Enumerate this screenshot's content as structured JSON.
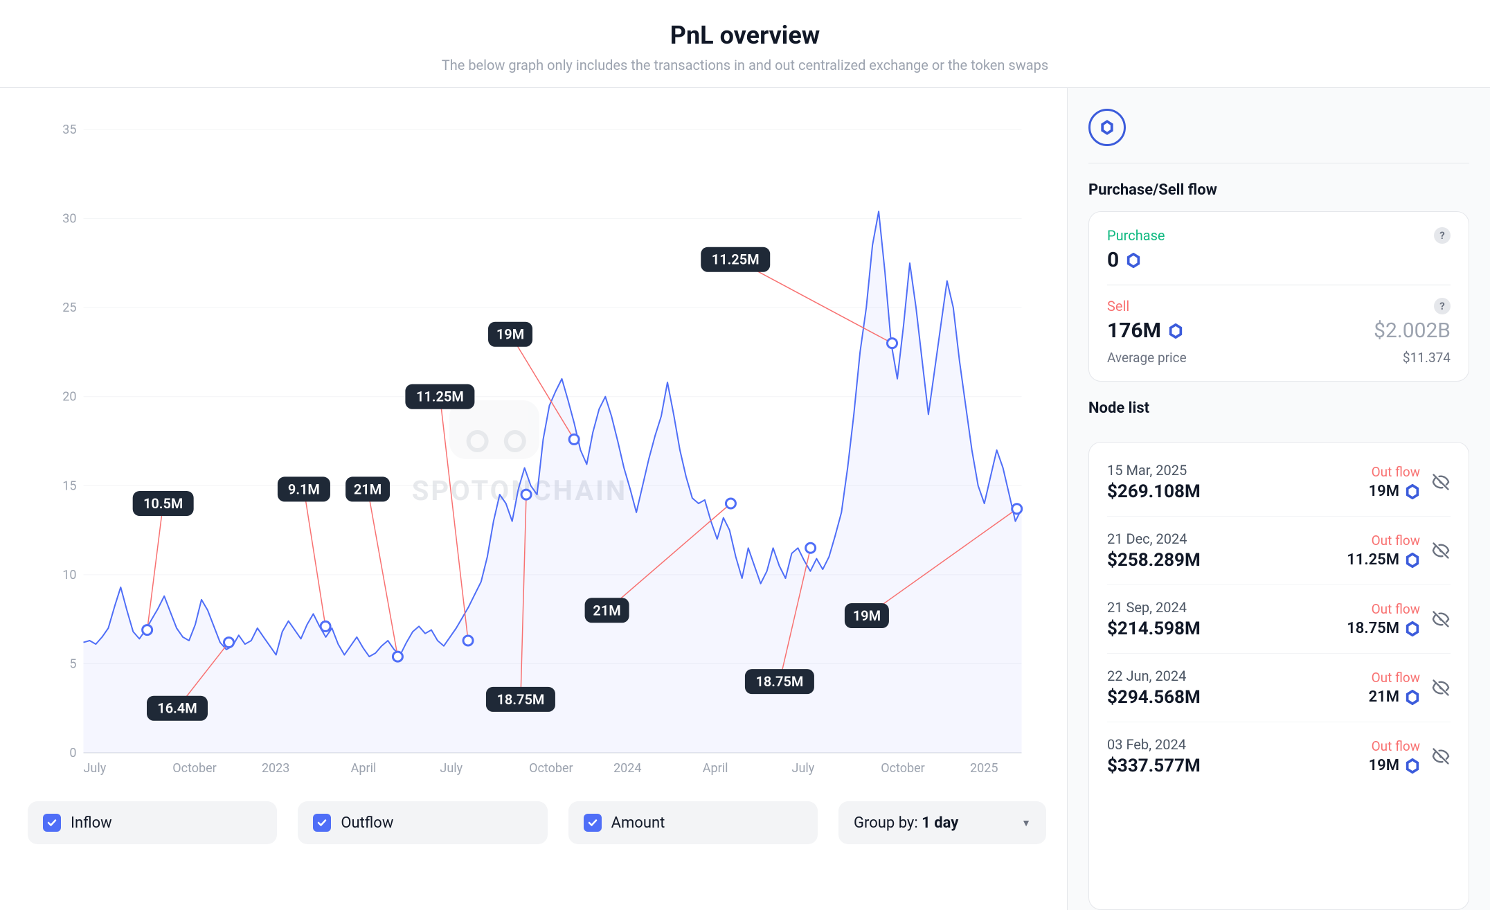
{
  "header": {
    "title": "PnL overview",
    "subtitle": "The below graph only includes the transactions in and out centralized exchange or the token swaps"
  },
  "chart": {
    "type": "line",
    "line_color": "#4f6ef7",
    "area_opacity": 0.06,
    "marker_stroke": "#4f6ef7",
    "marker_fill": "#ffffff",
    "callout_bg": "#1f2937",
    "callout_text": "#ffffff",
    "connector_color": "#f87171",
    "grid_color": "#f3f4f6",
    "axis_color": "#d1d5db",
    "tick_label_color": "#9ca3af",
    "y_ticks": [
      0,
      5,
      10,
      15,
      20,
      25,
      30,
      35
    ],
    "ylim": [
      0,
      35
    ],
    "x_ticks": [
      {
        "t": 0.0,
        "label": "July"
      },
      {
        "t": 0.095,
        "label": "October"
      },
      {
        "t": 0.19,
        "label": "2023"
      },
      {
        "t": 0.285,
        "label": "April"
      },
      {
        "t": 0.38,
        "label": "July"
      },
      {
        "t": 0.475,
        "label": "October"
      },
      {
        "t": 0.565,
        "label": "2024"
      },
      {
        "t": 0.66,
        "label": "April"
      },
      {
        "t": 0.755,
        "label": "July"
      },
      {
        "t": 0.85,
        "label": "October"
      },
      {
        "t": 0.945,
        "label": "2025"
      }
    ],
    "series": [
      6.2,
      6.3,
      6.1,
      6.5,
      7.0,
      8.2,
      9.3,
      8.0,
      6.8,
      6.4,
      6.9,
      7.5,
      8.1,
      8.8,
      7.9,
      7.0,
      6.5,
      6.3,
      7.2,
      8.6,
      8.0,
      7.1,
      6.2,
      5.8,
      6.0,
      6.6,
      6.1,
      6.3,
      7.0,
      6.5,
      6.0,
      5.5,
      6.8,
      7.4,
      6.9,
      6.4,
      7.2,
      7.8,
      7.1,
      6.5,
      7.0,
      6.1,
      5.5,
      6.0,
      6.5,
      5.9,
      5.4,
      5.6,
      6.0,
      6.3,
      5.8,
      5.5,
      6.2,
      6.8,
      7.1,
      6.7,
      6.9,
      6.3,
      6.0,
      6.5,
      7.0,
      7.6,
      8.2,
      8.9,
      9.6,
      11.0,
      13.0,
      14.5,
      14.0,
      13.0,
      14.8,
      16.0,
      15.0,
      14.5,
      17.6,
      19.5,
      20.3,
      21.0,
      19.8,
      18.5,
      17.0,
      16.2,
      18.0,
      19.3,
      20.0,
      18.9,
      17.5,
      16.0,
      14.8,
      13.5,
      15.0,
      16.5,
      17.8,
      18.9,
      20.8,
      19.0,
      17.0,
      15.5,
      14.3,
      14.0,
      14.2,
      13.0,
      12.0,
      13.2,
      12.5,
      11.0,
      9.8,
      11.5,
      10.5,
      9.5,
      10.2,
      11.5,
      10.5,
      9.8,
      11.2,
      11.5,
      10.8,
      10.2,
      10.9,
      10.3,
      11.0,
      12.2,
      13.5,
      16.0,
      19.0,
      22.5,
      25.0,
      28.5,
      30.4,
      27.0,
      23.0,
      21.0,
      24.0,
      27.5,
      25.0,
      22.0,
      19.0,
      21.5,
      24.0,
      26.5,
      25.0,
      22.0,
      19.5,
      17.0,
      15.0,
      14.0,
      15.5,
      17.0,
      16.0,
      14.5,
      13.0,
      13.7
    ],
    "markers": [
      {
        "t": 0.068,
        "y": 6.9,
        "label": "10.5M",
        "lx": 0.085,
        "ly": 14.0
      },
      {
        "t": 0.155,
        "y": 6.2,
        "label": "16.4M",
        "lx": 0.1,
        "ly": 2.5
      },
      {
        "t": 0.258,
        "y": 7.1,
        "label": "9.1M",
        "lx": 0.235,
        "ly": 14.8
      },
      {
        "t": 0.335,
        "y": 5.4,
        "label": "21M",
        "lx": 0.303,
        "ly": 14.8
      },
      {
        "t": 0.41,
        "y": 6.3,
        "label": "11.25M",
        "lx": 0.38,
        "ly": 20.0
      },
      {
        "t": 0.472,
        "y": 14.5,
        "label": "18.75M",
        "lx": 0.466,
        "ly": 3.0
      },
      {
        "t": 0.523,
        "y": 17.6,
        "label": "19M",
        "lx": 0.455,
        "ly": 23.5
      },
      {
        "t": 0.69,
        "y": 14.0,
        "label": "21M",
        "lx": 0.558,
        "ly": 8.0
      },
      {
        "t": 0.775,
        "y": 11.5,
        "label": "18.75M",
        "lx": 0.742,
        "ly": 4.0
      },
      {
        "t": 0.862,
        "y": 23.0,
        "label": "11.25M",
        "lx": 0.695,
        "ly": 27.7
      },
      {
        "t": 0.995,
        "y": 13.7,
        "label": "19M",
        "lx": 0.835,
        "ly": 7.7
      }
    ],
    "watermark": "SPOTONCHAIN"
  },
  "controls": {
    "inflow": "Inflow",
    "outflow": "Outflow",
    "amount": "Amount",
    "group_prefix": "Group by: ",
    "group_value": "1 day"
  },
  "side": {
    "section_flow": "Purchase/Sell flow",
    "purchase_label": "Purchase",
    "purchase_value": "0",
    "sell_label": "Sell",
    "sell_value": "176M",
    "sell_usd": "$2.002B",
    "avg_label": "Average price",
    "avg_value": "$11.374",
    "section_nodes": "Node list",
    "nodes": [
      {
        "date": "15 Mar, 2025",
        "amount": "$269.108M",
        "flow": "Out flow",
        "qty": "19M"
      },
      {
        "date": "21 Dec, 2024",
        "amount": "$258.289M",
        "flow": "Out flow",
        "qty": "11.25M"
      },
      {
        "date": "21 Sep, 2024",
        "amount": "$214.598M",
        "flow": "Out flow",
        "qty": "18.75M"
      },
      {
        "date": "22 Jun, 2024",
        "amount": "$294.568M",
        "flow": "Out flow",
        "qty": "21M"
      },
      {
        "date": "03 Feb, 2024",
        "amount": "$337.577M",
        "flow": "Out flow",
        "qty": "19M"
      }
    ]
  },
  "colors": {
    "brand_blue": "#3b5bdb",
    "green": "#10b981",
    "red": "#f87171",
    "muted": "#9ca3af"
  }
}
